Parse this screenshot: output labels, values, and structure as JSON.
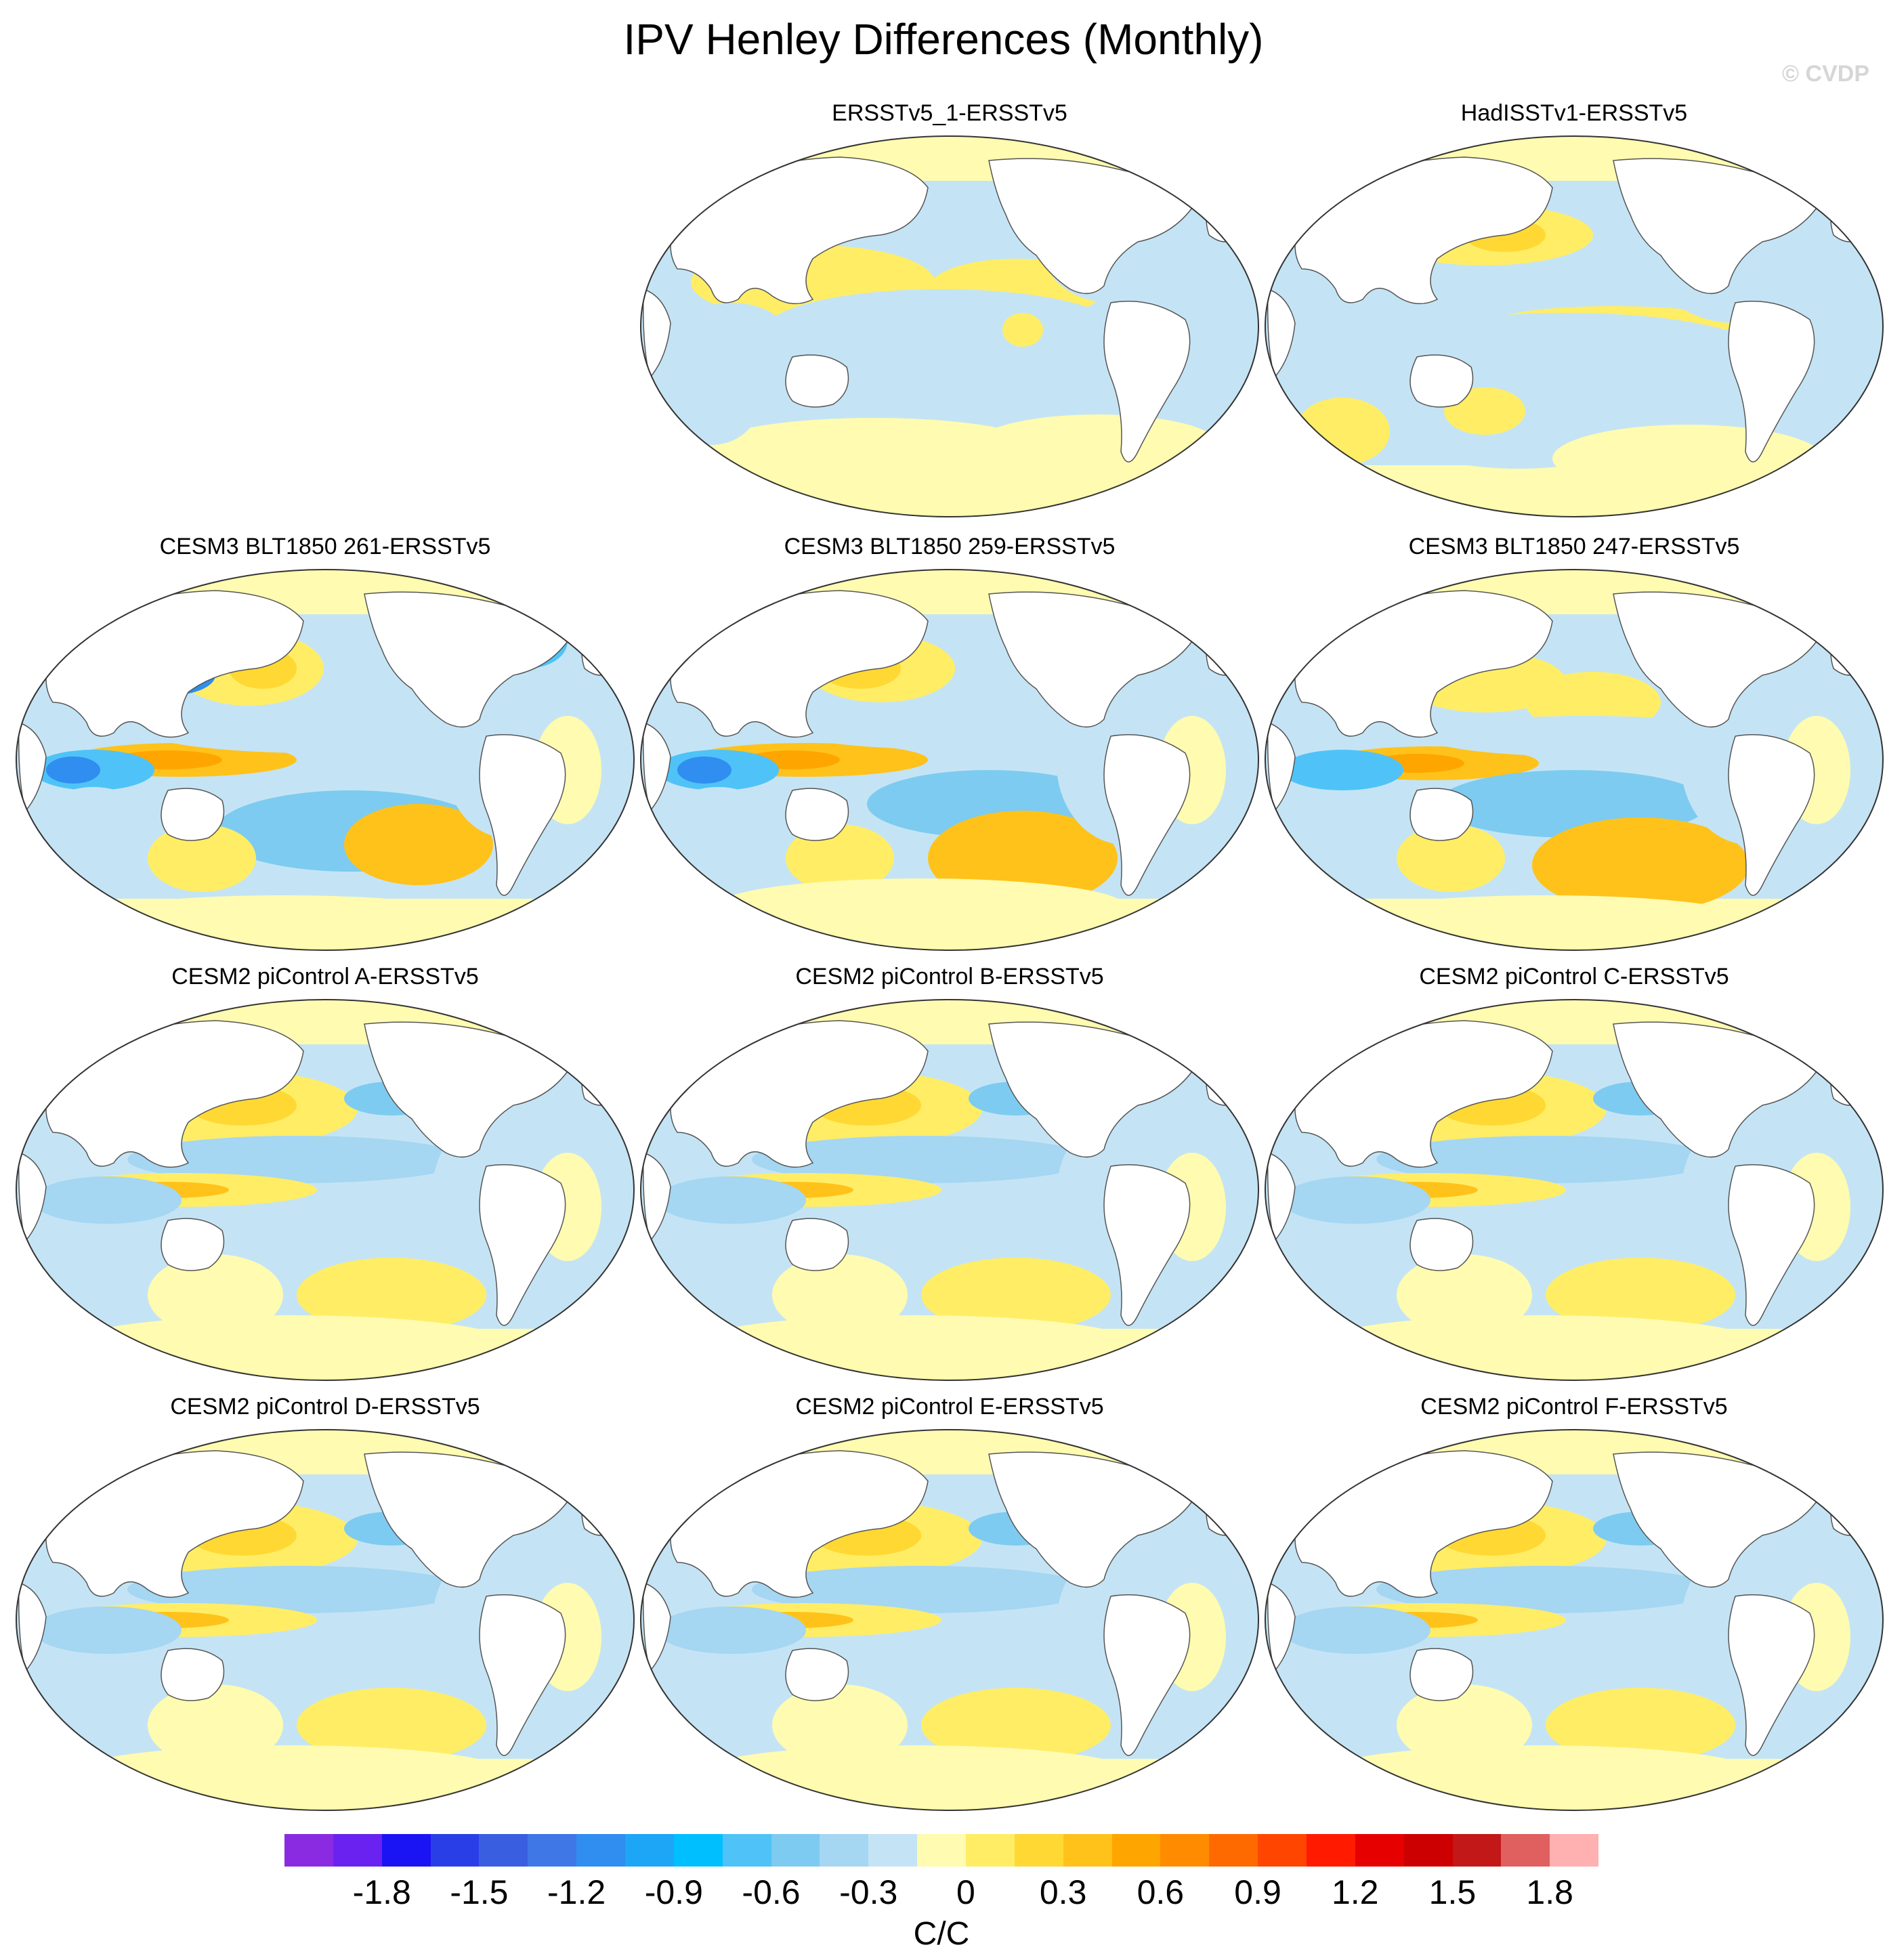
{
  "title": "IPV Henley Differences (Monthly)",
  "watermark": "© CVDP",
  "panels": [
    {
      "title": "ERSSTv5_1-ERSSTv5",
      "id": "ersstv5-1",
      "pattern": "obs1"
    },
    {
      "title": "HadISSTv1-ERSSTv5",
      "id": "hadisstv1",
      "pattern": "obs2"
    },
    {
      "title": "CESM3 BLT1850 261-ERSSTv5",
      "id": "cesm3-261",
      "pattern": "cesm3a"
    },
    {
      "title": "CESM3 BLT1850 259-ERSSTv5",
      "id": "cesm3-259",
      "pattern": "cesm3b"
    },
    {
      "title": "CESM3 BLT1850 247-ERSSTv5",
      "id": "cesm3-247",
      "pattern": "cesm3c"
    },
    {
      "title": "CESM2 piControl A-ERSSTv5",
      "id": "cesm2-a",
      "pattern": "cesm2"
    },
    {
      "title": "CESM2 piControl B-ERSSTv5",
      "id": "cesm2-b",
      "pattern": "cesm2"
    },
    {
      "title": "CESM2 piControl C-ERSSTv5",
      "id": "cesm2-c",
      "pattern": "cesm2"
    },
    {
      "title": "CESM2 piControl D-ERSSTv5",
      "id": "cesm2-d",
      "pattern": "cesm2"
    },
    {
      "title": "CESM2 piControl E-ERSSTv5",
      "id": "cesm2-e",
      "pattern": "cesm2"
    },
    {
      "title": "CESM2 piControl F-ERSSTv5",
      "id": "cesm2-f",
      "pattern": "cesm2"
    }
  ],
  "colorbar": {
    "units": "C/C",
    "labels": [
      "-1.8",
      "-1.5",
      "-1.2",
      "-0.9",
      "-0.6",
      "-0.3",
      "0",
      "0.3",
      "0.6",
      "0.9",
      "1.2",
      "1.5",
      "1.8"
    ],
    "colors": [
      "#8a2be2",
      "#6a22f0",
      "#1a14f5",
      "#2a3ee8",
      "#3a5ee0",
      "#3f78e6",
      "#2f8ef0",
      "#1ea6f6",
      "#00bfff",
      "#4fc3f7",
      "#7dcbf0",
      "#a5d6f2",
      "#c4e4f5",
      "#fffbb0",
      "#ffed66",
      "#ffd833",
      "#ffc21a",
      "#ffa500",
      "#ff8c00",
      "#ff6a00",
      "#ff4500",
      "#ff1a00",
      "#e60000",
      "#cc0000",
      "#c21818",
      "#e06060",
      "#ffb0b0"
    ]
  }
}
